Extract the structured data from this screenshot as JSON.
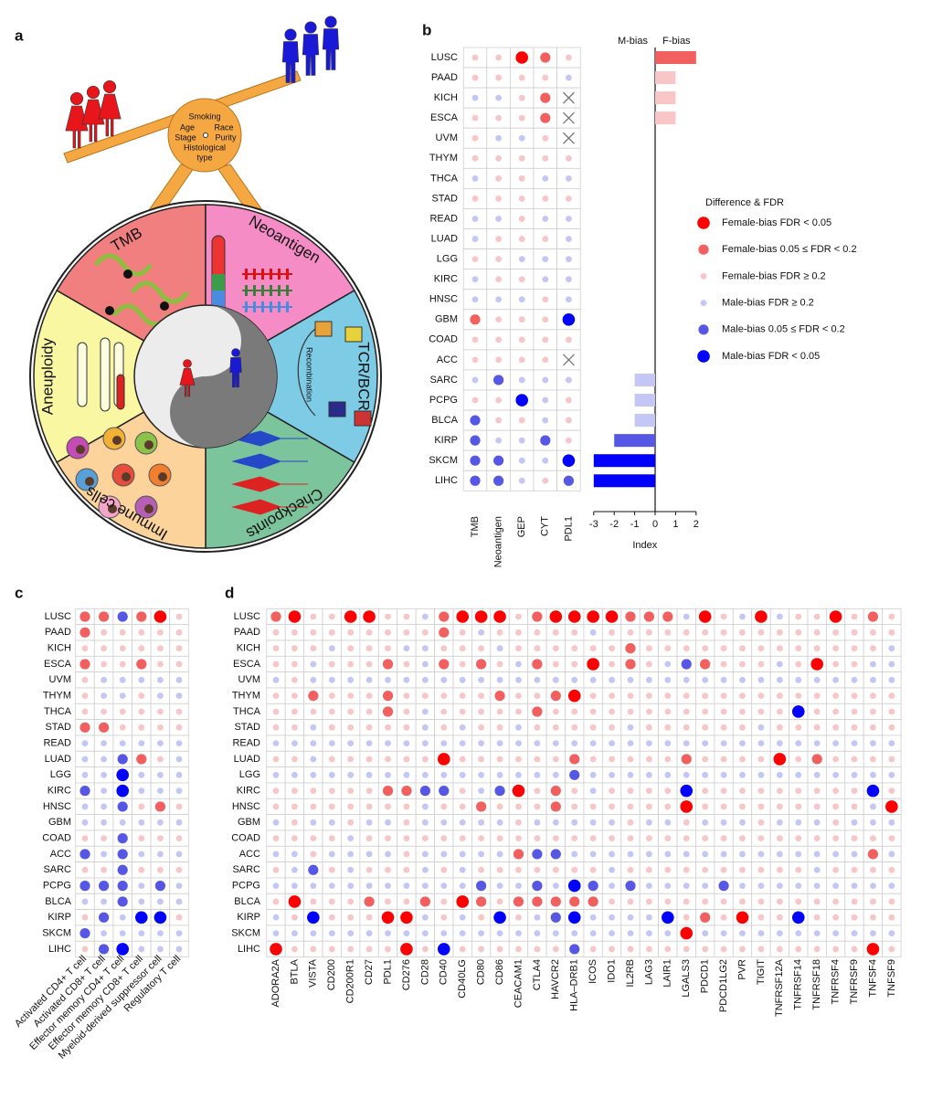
{
  "panel_labels": [
    "a",
    "b",
    "c",
    "d"
  ],
  "diagram": {
    "factors": [
      "Smoking",
      "Age",
      "Race",
      "Stage",
      "Purity"
    ],
    "factor_lines": [
      "Histological",
      "type"
    ],
    "segments": [
      "TMB",
      "Neoantigen",
      "TCR/BCR",
      "Checkpoints",
      "Immune cells",
      "Aneuploidy"
    ],
    "recombination": "Recombination"
  },
  "legend": {
    "title": "Difference & FDR",
    "entries": [
      {
        "label": "Female-bias FDR < 0.05",
        "level": 3,
        "color": "#ff0000"
      },
      {
        "label": "Female-bias 0.05 ≤ FDR < 0.2",
        "level": 2,
        "color": "#f25f5f"
      },
      {
        "label": "Female-bias FDR ≥ 0.2",
        "level": 1,
        "color": "#f8c6c6"
      },
      {
        "label": "Male-bias FDR ≥ 0.2",
        "level": -1,
        "color": "#c4c6f5"
      },
      {
        "label": "Male-bias 0.05 ≤ FDR < 0.2",
        "level": -2,
        "color": "#5757e6"
      },
      {
        "label": "Male-bias FDR < 0.05",
        "level": -3,
        "color": "#0000ff"
      }
    ]
  },
  "chart_data": [
    {
      "type": "dotmatrix",
      "rows": [
        "LUSC",
        "PAAD",
        "KICH",
        "ESCA",
        "UVM",
        "THYM",
        "THCA",
        "STAD",
        "READ",
        "LUAD",
        "LGG",
        "KIRC",
        "HNSC",
        "GBM",
        "COAD",
        "ACC",
        "SARC",
        "PCPG",
        "BLCA",
        "KIRP",
        "SKCM",
        "LIHC"
      ],
      "columns": [
        "TMB",
        "Neoantigen",
        "GEP",
        "CYT",
        "PDL1"
      ],
      "values": [
        [
          1,
          1,
          3,
          2,
          1
        ],
        [
          1,
          1,
          1,
          1,
          -1
        ],
        [
          -1,
          -1,
          1,
          2,
          null
        ],
        [
          1,
          1,
          1,
          2,
          null
        ],
        [
          1,
          -1,
          -1,
          1,
          null
        ],
        [
          1,
          1,
          1,
          1,
          1
        ],
        [
          -1,
          1,
          1,
          -1,
          -1
        ],
        [
          1,
          1,
          1,
          1,
          1
        ],
        [
          -1,
          -1,
          1,
          -1,
          -1
        ],
        [
          -1,
          1,
          1,
          1,
          -1
        ],
        [
          1,
          1,
          -1,
          -1,
          -1
        ],
        [
          -1,
          1,
          1,
          -1,
          -1
        ],
        [
          -1,
          -1,
          -1,
          1,
          -1
        ],
        [
          2,
          1,
          1,
          1,
          -3
        ],
        [
          1,
          1,
          1,
          1,
          1
        ],
        [
          1,
          1,
          1,
          1,
          null
        ],
        [
          -1,
          -2,
          -1,
          -1,
          -1
        ],
        [
          1,
          1,
          -3,
          -1,
          1
        ],
        [
          -2,
          1,
          1,
          -1,
          1
        ],
        [
          -2,
          -1,
          -1,
          -2,
          1
        ],
        [
          -2,
          -2,
          -1,
          -1,
          -3
        ],
        [
          -2,
          -2,
          -1,
          1,
          -2
        ]
      ]
    },
    {
      "type": "bar",
      "orientation": "horizontal",
      "values": [
        2,
        1,
        1,
        1,
        0,
        0,
        0,
        0,
        0,
        0,
        0,
        0,
        0,
        0,
        0,
        0,
        -1,
        -1,
        -1,
        -2,
        -3,
        -3
      ],
      "colors": [
        "#f25f5f",
        "#f8c6c6",
        "#f8c6c6",
        "#f8c6c6",
        "#f8c6c6",
        "#f8c6c6",
        "#f8c6c6",
        "#f8c6c6",
        "#c4c6f5",
        "#c4c6f5",
        "#c4c6f5",
        "#c4c6f5",
        "#c4c6f5",
        "#c4c6f5",
        "#c4c6f5",
        "#c4c6f5",
        "#c4c6f5",
        "#c4c6f5",
        "#c4c6f5",
        "#5757e6",
        "#0000ff",
        "#0000ff"
      ],
      "xlim": [
        -3,
        2
      ],
      "xticks": [
        -3,
        -2,
        -1,
        0,
        1,
        2
      ],
      "xlabel": "Index",
      "left_label": "M-bias",
      "right_label": "F-bias"
    },
    {
      "type": "dotmatrix",
      "rows": [
        "LUSC",
        "PAAD",
        "KICH",
        "ESCA",
        "UVM",
        "THYM",
        "THCA",
        "STAD",
        "READ",
        "LUAD",
        "LGG",
        "KIRC",
        "HNSC",
        "GBM",
        "COAD",
        "ACC",
        "SARC",
        "PCPG",
        "BLCA",
        "KIRP",
        "SKCM",
        "LIHC"
      ],
      "columns": [
        "Activated CD4+ T cell",
        "Activated CD8+ T cell",
        "Effector memory CD4+ T cell",
        "Effector memory CD8+ T cell",
        "Myeloid-derived suppressor cell",
        "Regulatory T cell"
      ],
      "values": [
        [
          2,
          2,
          -2,
          2,
          3,
          1
        ],
        [
          2,
          1,
          1,
          1,
          1,
          1
        ],
        [
          1,
          1,
          1,
          1,
          1,
          1
        ],
        [
          2,
          1,
          1,
          2,
          1,
          1
        ],
        [
          1,
          -1,
          -1,
          -1,
          -1,
          -1
        ],
        [
          1,
          -1,
          -1,
          1,
          -1,
          -1
        ],
        [
          1,
          1,
          1,
          1,
          1,
          1
        ],
        [
          2,
          2,
          1,
          1,
          1,
          1
        ],
        [
          -1,
          -1,
          -1,
          -1,
          -1,
          -1
        ],
        [
          -1,
          -1,
          -2,
          2,
          1,
          -1
        ],
        [
          -1,
          -1,
          -3,
          -1,
          -1,
          -1
        ],
        [
          -2,
          -1,
          -3,
          -1,
          -1,
          -1
        ],
        [
          -1,
          -1,
          -2,
          1,
          2,
          1
        ],
        [
          -1,
          -1,
          -1,
          -1,
          -1,
          -1
        ],
        [
          1,
          1,
          -2,
          1,
          1,
          1
        ],
        [
          -2,
          -1,
          -2,
          -1,
          -1,
          -1
        ],
        [
          1,
          1,
          -2,
          1,
          1,
          1
        ],
        [
          -2,
          -2,
          -2,
          -1,
          -2,
          -1
        ],
        [
          -1,
          -1,
          -2,
          -1,
          -1,
          -1
        ],
        [
          1,
          -2,
          -1,
          -3,
          -3,
          1
        ],
        [
          -2,
          -1,
          -1,
          -1,
          -1,
          -1
        ],
        [
          1,
          -2,
          -3,
          -1,
          -1,
          -1
        ]
      ]
    },
    {
      "type": "dotmatrix",
      "rows": [
        "LUSC",
        "PAAD",
        "KICH",
        "ESCA",
        "UVM",
        "THYM",
        "THCA",
        "STAD",
        "READ",
        "LUAD",
        "LGG",
        "KIRC",
        "HNSC",
        "GBM",
        "COAD",
        "ACC",
        "SARC",
        "PCPG",
        "BLCA",
        "KIRP",
        "SKCM",
        "LIHC"
      ],
      "columns": [
        "ADORA2A",
        "BTLA",
        "VISTA",
        "CD200",
        "CD200R1",
        "CD27",
        "PDL1",
        "CD276",
        "CD28",
        "CD40",
        "CD40LG",
        "CD80",
        "CD86",
        "CEACAM1",
        "CTLA4",
        "HAVCR2",
        "HLA–DRB1",
        "ICOS",
        "IDO1",
        "IL2RB",
        "LAG3",
        "LAIR1",
        "LGALS3",
        "PDCD1",
        "PDCD1LG2",
        "PVR",
        "TIGIT",
        "TNFRSF12A",
        "TNFRSF14",
        "TNFRSF18",
        "TNFRSF4",
        "TNFRSF9",
        "TNFSF4",
        "TNFSF9"
      ],
      "values": [
        [
          2,
          3,
          1,
          1,
          3,
          3,
          1,
          1,
          -1,
          2,
          3,
          3,
          3,
          1,
          2,
          3,
          3,
          3,
          3,
          2,
          2,
          2,
          -1,
          3,
          1,
          -1,
          3,
          -1,
          1,
          1,
          3,
          1,
          2,
          1
        ],
        [
          1,
          1,
          1,
          1,
          1,
          1,
          1,
          1,
          1,
          2,
          1,
          -1,
          1,
          1,
          1,
          1,
          1,
          -1,
          1,
          1,
          1,
          1,
          1,
          1,
          1,
          1,
          1,
          1,
          1,
          1,
          1,
          1,
          1,
          1
        ],
        [
          1,
          1,
          1,
          -1,
          1,
          1,
          1,
          -1,
          -1,
          1,
          1,
          1,
          -1,
          1,
          1,
          1,
          1,
          1,
          1,
          2,
          1,
          1,
          1,
          1,
          1,
          1,
          1,
          1,
          1,
          1,
          1,
          1,
          1,
          -1
        ],
        [
          1,
          1,
          -1,
          1,
          1,
          1,
          2,
          1,
          -1,
          2,
          1,
          2,
          1,
          -1,
          2,
          1,
          1,
          3,
          1,
          2,
          1,
          -1,
          -2,
          2,
          1,
          1,
          1,
          -1,
          1,
          3,
          1,
          1,
          -1,
          -1
        ],
        [
          -1,
          1,
          -1,
          -1,
          -1,
          -1,
          -1,
          -1,
          -1,
          -1,
          -1,
          -1,
          -1,
          -1,
          -1,
          -1,
          -1,
          -1,
          -1,
          -1,
          -1,
          -1,
          -1,
          -1,
          -1,
          -1,
          -1,
          -1,
          -1,
          -1,
          -1,
          -1,
          -1,
          -1
        ],
        [
          1,
          1,
          2,
          1,
          1,
          1,
          2,
          1,
          1,
          1,
          1,
          1,
          2,
          1,
          1,
          2,
          3,
          1,
          1,
          1,
          1,
          1,
          1,
          1,
          1,
          1,
          1,
          1,
          1,
          1,
          1,
          1,
          1,
          1
        ],
        [
          1,
          1,
          1,
          1,
          1,
          1,
          2,
          1,
          -1,
          1,
          1,
          1,
          1,
          1,
          2,
          1,
          1,
          1,
          1,
          1,
          1,
          1,
          1,
          1,
          1,
          1,
          1,
          1,
          -3,
          1,
          1,
          1,
          1,
          1
        ],
        [
          1,
          1,
          -1,
          1,
          1,
          1,
          1,
          1,
          -1,
          1,
          -1,
          1,
          1,
          -1,
          1,
          1,
          1,
          1,
          1,
          -1,
          1,
          1,
          1,
          1,
          1,
          1,
          -1,
          1,
          1,
          1,
          1,
          1,
          1,
          1
        ],
        [
          -1,
          -1,
          -1,
          -1,
          -1,
          -1,
          -1,
          -1,
          -1,
          -1,
          -1,
          -1,
          -1,
          -1,
          -1,
          -1,
          -1,
          -1,
          -1,
          -1,
          -1,
          -1,
          -1,
          -1,
          -1,
          -1,
          -1,
          -1,
          -1,
          -1,
          -1,
          -1,
          -1,
          -1
        ],
        [
          1,
          1,
          -1,
          1,
          1,
          1,
          1,
          1,
          1,
          3,
          1,
          1,
          1,
          1,
          1,
          1,
          2,
          1,
          1,
          1,
          1,
          1,
          2,
          1,
          1,
          1,
          1,
          3,
          1,
          2,
          1,
          1,
          1,
          1
        ],
        [
          -1,
          -1,
          -1,
          -1,
          -1,
          -1,
          -1,
          -1,
          -1,
          -1,
          -1,
          -1,
          -1,
          -1,
          -1,
          -1,
          -2,
          -1,
          -1,
          -1,
          -1,
          -1,
          -1,
          -1,
          -1,
          -1,
          -1,
          -1,
          -1,
          -1,
          -1,
          -1,
          -1,
          -1
        ],
        [
          1,
          1,
          1,
          1,
          1,
          1,
          2,
          2,
          -2,
          -2,
          1,
          -1,
          -2,
          3,
          1,
          2,
          1,
          -1,
          1,
          1,
          1,
          1,
          -3,
          1,
          1,
          1,
          1,
          1,
          1,
          1,
          1,
          1,
          -3,
          1
        ],
        [
          1,
          1,
          1,
          1,
          1,
          1,
          1,
          1,
          -1,
          1,
          1,
          2,
          1,
          1,
          1,
          2,
          1,
          1,
          1,
          1,
          1,
          1,
          3,
          1,
          1,
          1,
          1,
          1,
          1,
          1,
          1,
          1,
          -1,
          3
        ],
        [
          -1,
          1,
          -1,
          -1,
          1,
          -1,
          -1,
          1,
          -1,
          -1,
          -1,
          -1,
          -1,
          1,
          -1,
          -1,
          -1,
          -1,
          -1,
          1,
          -1,
          -1,
          1,
          -1,
          -1,
          -1,
          1,
          -1,
          -1,
          -1,
          1,
          -1,
          -1,
          -1
        ],
        [
          1,
          1,
          1,
          1,
          -1,
          1,
          1,
          1,
          1,
          1,
          1,
          1,
          1,
          1,
          1,
          1,
          1,
          1,
          1,
          1,
          1,
          1,
          1,
          1,
          1,
          1,
          1,
          1,
          1,
          1,
          1,
          1,
          1,
          1
        ],
        [
          -1,
          -1,
          1,
          -1,
          -1,
          -1,
          -1,
          1,
          -1,
          -1,
          -1,
          -1,
          -1,
          2,
          -2,
          -2,
          -1,
          -1,
          -1,
          -1,
          -1,
          -1,
          -1,
          -1,
          -1,
          -1,
          -1,
          -1,
          -1,
          -1,
          -1,
          -1,
          2,
          -1
        ],
        [
          1,
          -1,
          -2,
          1,
          -1,
          1,
          1,
          1,
          -1,
          1,
          -1,
          1,
          1,
          1,
          1,
          1,
          1,
          1,
          -1,
          1,
          1,
          1,
          1,
          1,
          1,
          1,
          1,
          1,
          1,
          -1,
          1,
          1,
          1,
          1
        ],
        [
          -1,
          -1,
          -1,
          -1,
          -1,
          -1,
          -1,
          -1,
          -1,
          -1,
          -1,
          -2,
          -1,
          -1,
          -2,
          -1,
          -3,
          -2,
          -1,
          -2,
          -1,
          -1,
          -1,
          -1,
          -2,
          -1,
          -1,
          -1,
          -1,
          -1,
          -1,
          -1,
          -1,
          -1
        ],
        [
          1,
          3,
          1,
          1,
          1,
          2,
          1,
          1,
          2,
          1,
          3,
          2,
          1,
          2,
          2,
          2,
          2,
          2,
          1,
          1,
          1,
          1,
          1,
          1,
          1,
          1,
          1,
          1,
          1,
          1,
          1,
          1,
          1,
          1
        ],
        [
          -1,
          1,
          -3,
          1,
          1,
          1,
          3,
          3,
          -1,
          1,
          -1,
          1,
          -3,
          1,
          -1,
          -2,
          -3,
          -1,
          -1,
          -1,
          -1,
          -3,
          1,
          2,
          1,
          3,
          1,
          1,
          -3,
          1,
          1,
          1,
          1,
          1
        ],
        [
          -1,
          -1,
          -1,
          -1,
          -1,
          -1,
          -1,
          -1,
          -1,
          -1,
          -1,
          -1,
          -1,
          -1,
          -1,
          -1,
          -1,
          -1,
          -1,
          -1,
          -1,
          -1,
          3,
          -1,
          -1,
          -1,
          -1,
          -1,
          -1,
          -1,
          -1,
          -1,
          -1,
          -1
        ],
        [
          3,
          1,
          1,
          1,
          1,
          1,
          1,
          3,
          1,
          -3,
          1,
          1,
          1,
          1,
          1,
          1,
          -2,
          1,
          1,
          1,
          1,
          1,
          1,
          1,
          1,
          1,
          1,
          1,
          1,
          1,
          1,
          1,
          3,
          1
        ]
      ]
    }
  ]
}
